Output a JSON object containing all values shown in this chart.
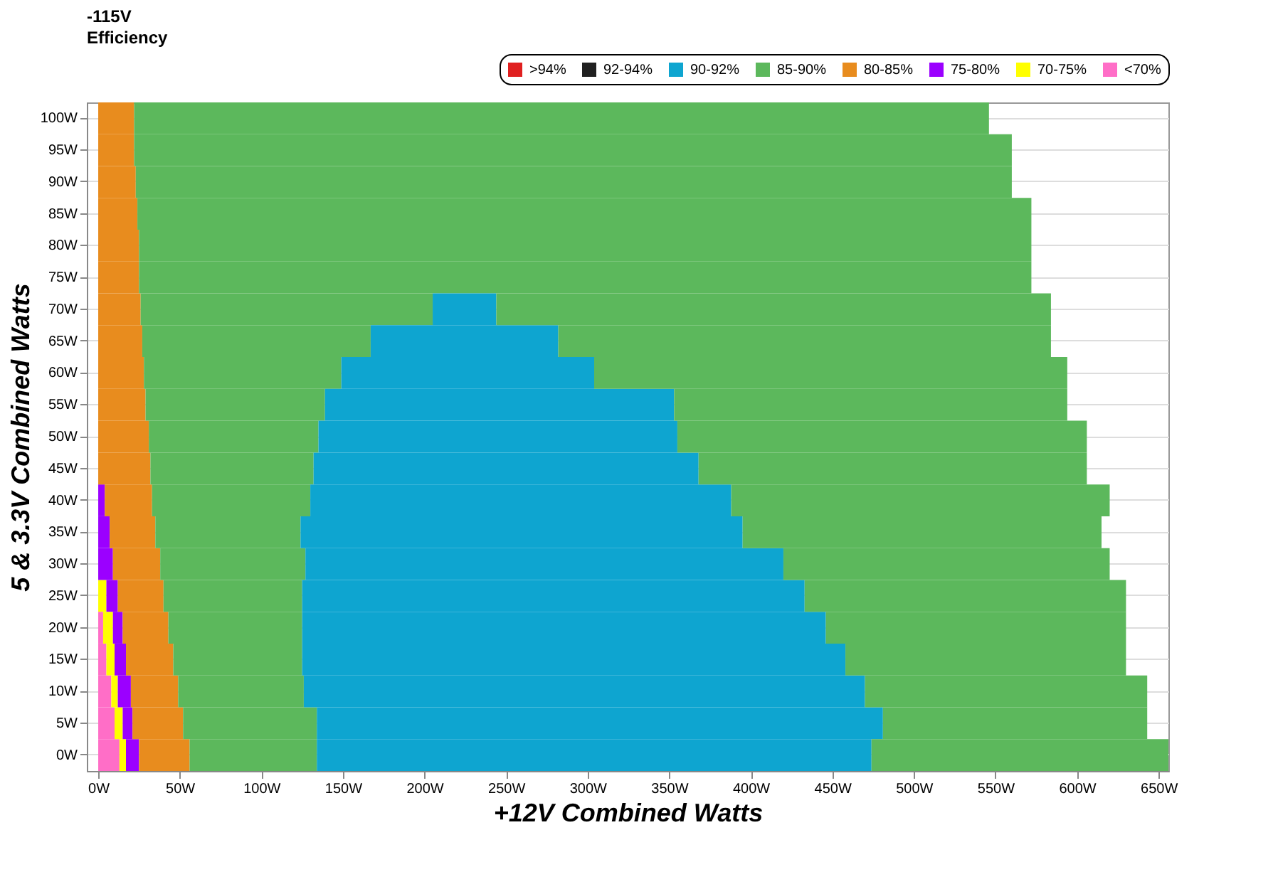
{
  "chart_data": {
    "type": "bar",
    "orientation": "horizontal",
    "stacked": true,
    "title": "-115V",
    "subtitle": "Efficiency",
    "xlabel": "+12V Combined Watts",
    "ylabel": "5 & 3.3V Combined Watts",
    "categories": [
      "100W",
      "95W",
      "90W",
      "85W",
      "80W",
      "75W",
      "70W",
      "65W",
      "60W",
      "55W",
      "50W",
      "45W",
      "40W",
      "35W",
      "30W",
      "25W",
      "20W",
      "15W",
      "10W",
      "5W",
      "0W"
    ],
    "series": [
      {
        "name": "<70%",
        "color": "#ff6ec7",
        "values": [
          null,
          null,
          null,
          null,
          null,
          null,
          null,
          null,
          null,
          null,
          null,
          null,
          null,
          null,
          null,
          null,
          3,
          5,
          8,
          10,
          13
        ]
      },
      {
        "name": "70-75%",
        "color": "#ffff00",
        "values": [
          null,
          null,
          null,
          null,
          null,
          null,
          null,
          null,
          null,
          null,
          null,
          null,
          null,
          null,
          null,
          5,
          6,
          5,
          4,
          5,
          4
        ]
      },
      {
        "name": "75-80%",
        "color": "#9b00ff",
        "values": [
          null,
          null,
          null,
          null,
          null,
          null,
          null,
          null,
          null,
          null,
          null,
          null,
          4,
          7,
          9,
          7,
          6,
          7,
          8,
          6,
          8
        ]
      },
      {
        "name": "80-85%",
        "color": "#e88c1e",
        "values": [
          22,
          22,
          23,
          24,
          25,
          25,
          26,
          27,
          28,
          29,
          31,
          32,
          29,
          28,
          29,
          28,
          28,
          29,
          29,
          31,
          31
        ]
      },
      {
        "name": "85-90%",
        "color": "#5cb85c",
        "values": [
          524,
          538,
          537,
          548,
          547,
          547,
          179,
          140,
          121,
          110,
          104,
          100,
          97,
          89,
          89,
          85,
          82,
          79,
          77,
          82,
          78
        ]
      },
      {
        "name": "90-92%",
        "color": "#0ea5d0",
        "values": [
          null,
          null,
          null,
          null,
          null,
          null,
          39,
          115,
          155,
          214,
          220,
          236,
          258,
          271,
          293,
          308,
          321,
          333,
          344,
          347,
          340
        ]
      },
      {
        "color": "#5cb85c",
        "values": [
          null,
          null,
          null,
          null,
          null,
          null,
          340,
          302,
          290,
          241,
          251,
          238,
          232,
          220,
          200,
          197,
          184,
          172,
          173,
          162,
          182
        ]
      },
      {
        "name": "92-94%",
        "color": "#202020",
        "values": [
          null,
          null,
          null,
          null,
          null,
          null,
          null,
          null,
          null,
          null,
          null,
          null,
          null,
          null,
          null,
          null,
          null,
          null,
          null,
          null,
          null
        ]
      },
      {
        "name": ">94%",
        "color": "#e02020",
        "values": [
          null,
          null,
          null,
          null,
          null,
          null,
          null,
          null,
          null,
          null,
          null,
          null,
          null,
          null,
          null,
          null,
          null,
          null,
          null,
          null,
          null
        ]
      }
    ],
    "xlim": [
      -7,
      656
    ],
    "xticks": [
      {
        "value": 0,
        "label": "0W"
      },
      {
        "value": 50,
        "label": "50W"
      },
      {
        "value": 100,
        "label": "100W"
      },
      {
        "value": 150,
        "label": "150W"
      },
      {
        "value": 200,
        "label": "200W"
      },
      {
        "value": 250,
        "label": "250W"
      },
      {
        "value": 300,
        "label": "300W"
      },
      {
        "value": 350,
        "label": "350W"
      },
      {
        "value": 400,
        "label": "400W"
      },
      {
        "value": 450,
        "label": "450W"
      },
      {
        "value": 500,
        "label": "500W"
      },
      {
        "value": 550,
        "label": "550W"
      },
      {
        "value": 600,
        "label": "600W"
      },
      {
        "value": 650,
        "label": "650W"
      }
    ],
    "grid": "y",
    "legend": "top right"
  }
}
